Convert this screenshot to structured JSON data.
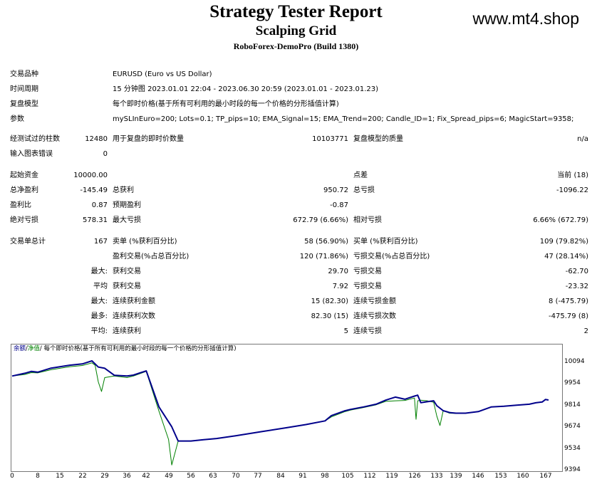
{
  "header": {
    "title": "Strategy Tester Report",
    "subtitle": "Scalping Grid",
    "build": "RoboForex-DemoPro (Build 1380)",
    "site": "www.mt4.shop"
  },
  "info": {
    "symbol_label": "交易品种",
    "symbol_value": "EURUSD (Euro vs US Dollar)",
    "period_label": "时间周期",
    "period_value": "15 分钟图 2023.01.01 22:04 - 2023.06.30 20:59 (2023.01.01 - 2023.01.23)",
    "model_label": "复盘模型",
    "model_value": "每个即时价格(基于所有可利用的最小时段的每一个价格的分形插值计算)",
    "params_label": "参数",
    "params_value": "mySLInEuro=200; Lots=0.1; TP_pips=10; EMA_Signal=15; EMA_Trend=200; Candle_ID=1; Fix_Spread_pips=6; MagicStart=9358;"
  },
  "test": {
    "bars_label": "经测试过的柱数",
    "bars_value": "12480",
    "ticks_label": "用于复盘的即时价数量",
    "ticks_value": "10103771",
    "quality_label": "复盘模型的质量",
    "quality_value": "n/a",
    "errors_label": "输入图表错误",
    "errors_value": "0"
  },
  "summary": {
    "deposit_label": "起始资金",
    "deposit_value": "10000.00",
    "spread_label": "点差",
    "spread_value": "当前 (18)",
    "net_label": "总净盈利",
    "net_value": "-145.49",
    "gross_profit_label": "总获利",
    "gross_profit_value": "950.72",
    "gross_loss_label": "总亏损",
    "gross_loss_value": "-1096.22",
    "pf_label": "盈利比",
    "pf_value": "0.87",
    "expected_label": "预期盈利",
    "expected_value": "-0.87",
    "abs_dd_label": "绝对亏损",
    "abs_dd_value": "578.31",
    "max_dd_label": "最大亏损",
    "max_dd_value": "672.79 (6.66%)",
    "rel_dd_label": "相对亏损",
    "rel_dd_value": "6.66% (672.79)"
  },
  "trades": {
    "total_label": "交易单总计",
    "total_value": "167",
    "short_label": "卖单 (%获利百分比)",
    "short_value": "58 (56.90%)",
    "long_label": "买单 (%获利百分比)",
    "long_value": "109 (79.82%)",
    "profit_trades_label": "盈利交易(%占总百分比)",
    "profit_trades_value": "120 (71.86%)",
    "loss_trades_label": "亏损交易(%占总百分比)",
    "loss_trades_value": "47 (28.14%)",
    "largest_prefix": "最大:",
    "largest_profit_label": "获利交易",
    "largest_profit_value": "29.70",
    "largest_loss_label": "亏损交易",
    "largest_loss_value": "-62.70",
    "average_prefix": "平均",
    "average_profit_label": "获利交易",
    "average_profit_value": "7.92",
    "average_loss_label": "亏损交易",
    "average_loss_value": "-23.32",
    "max_prefix": "最大:",
    "max_consec_wins_label": "连续获利金额",
    "max_consec_wins_value": "15 (82.30)",
    "max_consec_losses_label": "连续亏损金额",
    "max_consec_losses_value": "8 (-475.79)",
    "maximal_prefix": "最多:",
    "maximal_wins_label": "连续获利次数",
    "maximal_wins_value": "82.30 (15)",
    "maximal_losses_label": "连续亏损次数",
    "maximal_losses_value": "-475.79 (8)",
    "avg_consec_prefix": "平均:",
    "avg_consec_wins_label": "连续获利",
    "avg_consec_wins_value": "5",
    "avg_consec_losses_label": "连续亏损",
    "avg_consec_losses_value": "2"
  },
  "chart_data": {
    "type": "line",
    "legend": {
      "balance": "余额",
      "sep": "/",
      "equity": "净值",
      "rest": "/ 每个即时价格(基于所有可利用的最小时段的每一个价格的分形插值计算)"
    },
    "colors": {
      "balance": "#00008b",
      "equity": "#008000"
    },
    "xlim": [
      0,
      170
    ],
    "ylim": [
      9394,
      10144
    ],
    "y_ticks": [
      10094,
      9954,
      9814,
      9674,
      9534,
      9394
    ],
    "x_ticks": [
      0,
      8,
      15,
      22,
      29,
      36,
      42,
      49,
      56,
      63,
      70,
      77,
      84,
      91,
      98,
      105,
      112,
      119,
      126,
      133,
      139,
      146,
      153,
      160,
      167
    ],
    "series": [
      {
        "name": "余额",
        "x": [
          0,
          4,
          6,
          8,
          12,
          15,
          18,
          22,
          25,
          27,
          29,
          32,
          36,
          38,
          40,
          42,
          46,
          50,
          52,
          56,
          60,
          64,
          70,
          78,
          86,
          92,
          98,
          100,
          104,
          106,
          110,
          114,
          117,
          120,
          123,
          126,
          127,
          128,
          130,
          132,
          133,
          135,
          137,
          139,
          142,
          146,
          150,
          154,
          158,
          162,
          164,
          166,
          167,
          168
        ],
        "y": [
          10000,
          10018,
          10030,
          10025,
          10050,
          10060,
          10070,
          10078,
          10098,
          10058,
          10050,
          10005,
          10000,
          10006,
          10020,
          10033,
          9800,
          9672,
          9580,
          9580,
          9588,
          9596,
          9614,
          9640,
          9666,
          9686,
          9710,
          9744,
          9774,
          9784,
          9800,
          9818,
          9844,
          9864,
          9850,
          9870,
          9876,
          9828,
          9834,
          9840,
          9808,
          9776,
          9764,
          9760,
          9760,
          9770,
          9800,
          9805,
          9812,
          9818,
          9827,
          9832,
          9848,
          9845
        ]
      },
      {
        "name": "净值",
        "x": [
          0,
          4,
          6,
          8,
          12,
          15,
          18,
          22,
          25,
          26,
          27,
          28,
          29,
          32,
          36,
          38,
          40,
          42,
          46,
          49,
          50,
          52,
          56,
          60,
          64,
          70,
          78,
          86,
          92,
          98,
          100,
          104,
          106,
          110,
          114,
          117,
          120,
          123,
          126,
          126.5,
          127,
          128,
          130,
          132,
          133,
          134,
          135,
          137,
          139,
          142,
          146,
          150,
          154,
          158,
          162,
          164,
          166,
          167,
          168
        ],
        "y": [
          10000,
          10010,
          10022,
          10020,
          10040,
          10050,
          10060,
          10068,
          10085,
          10070,
          9962,
          9900,
          9990,
          10000,
          9990,
          10000,
          10015,
          10030,
          9772,
          9590,
          9425,
          9580,
          9580,
          9588,
          9596,
          9614,
          9640,
          9666,
          9686,
          9710,
          9736,
          9768,
          9780,
          9796,
          9814,
          9836,
          9840,
          9842,
          9858,
          9720,
          9840,
          9844,
          9840,
          9830,
          9740,
          9680,
          9776,
          9760,
          9758,
          9760,
          9770,
          9800,
          9805,
          9812,
          9818,
          9827,
          9832,
          9848,
          9845
        ]
      }
    ]
  }
}
